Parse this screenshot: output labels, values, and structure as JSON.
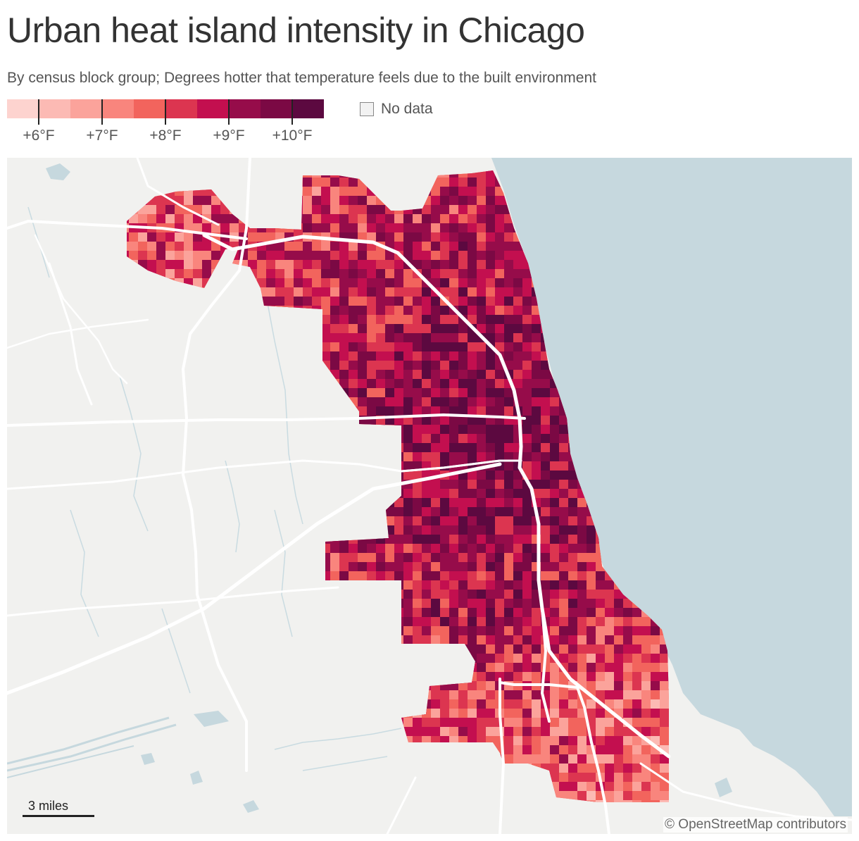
{
  "title": "Urban heat island intensity in Chicago",
  "subtitle": "By census block group; Degrees hotter that temperature feels due to the built environment",
  "legend": {
    "colors": [
      "#fdd3cf",
      "#fcbab4",
      "#fba39b",
      "#f9857d",
      "#f2645d",
      "#dc3550",
      "#c30f4f",
      "#960c4a",
      "#7b0944",
      "#5c0940"
    ],
    "ticks": [
      {
        "label": "+6°F",
        "value": 6
      },
      {
        "label": "+7°F",
        "value": 7
      },
      {
        "label": "+8°F",
        "value": 8
      },
      {
        "label": "+9°F",
        "value": 9
      },
      {
        "label": "+10°F",
        "value": 10
      }
    ],
    "no_data_label": "No data",
    "no_data_color": "#f2f2f2"
  },
  "map": {
    "water_color": "#c6d8de",
    "land_color": "#f1f1ef",
    "road_color": "#ffffff",
    "scale_label": "3 miles",
    "attribution": "© OpenStreetMap contributors"
  }
}
